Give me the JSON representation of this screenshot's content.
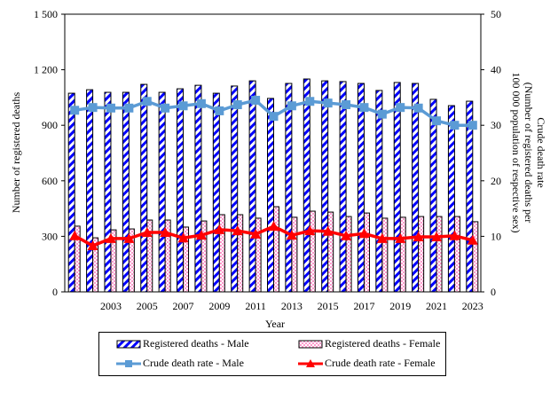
{
  "chart_data": {
    "type": "bar",
    "title": "",
    "xlabel": "Year",
    "ylabel": "Number of registered deaths",
    "y2label_lines": [
      "Crude death rate",
      "(Number of registered deaths per",
      "100 000 population of respective sex)"
    ],
    "ylim": [
      0,
      1500
    ],
    "y2lim": [
      0,
      50
    ],
    "yticks": [
      "0",
      "300",
      "600",
      "900",
      "1 200",
      "1 500"
    ],
    "yticks_values": [
      0,
      300,
      600,
      900,
      1200,
      1500
    ],
    "y2ticks": [
      "0",
      "10",
      "20",
      "30",
      "40",
      "50"
    ],
    "y2ticks_values": [
      0,
      10,
      20,
      30,
      40,
      50
    ],
    "grid": false,
    "legend_position": "bottom",
    "categories": [
      "2001",
      "2002",
      "2003",
      "2004",
      "2005",
      "2006",
      "2007",
      "2008",
      "2009",
      "2010",
      "2011",
      "2012",
      "2013",
      "2014",
      "2015",
      "2016",
      "2017",
      "2018",
      "2019",
      "2020",
      "2021",
      "2022",
      "2023"
    ],
    "xtick_labels": [
      "",
      "",
      "2003",
      "",
      "2005",
      "",
      "2007",
      "",
      "2009",
      "",
      "2011",
      "",
      "2013",
      "",
      "2015",
      "",
      "2017",
      "",
      "2019",
      "",
      "2021",
      "",
      "2023"
    ],
    "series": [
      {
        "name": "Registered deaths - Male",
        "kind": "bar",
        "axis": "left",
        "color": "#0000ff",
        "pattern": "diagonal-stripes",
        "values": [
          1073,
          1092,
          1078,
          1078,
          1121,
          1078,
          1097,
          1116,
          1073,
          1112,
          1140,
          1045,
          1126,
          1150,
          1140,
          1136,
          1126,
          1088,
          1131,
          1126,
          1040,
          1006,
          1030
        ]
      },
      {
        "name": "Registered deaths - Female",
        "kind": "bar",
        "axis": "left",
        "color": "#ff99cc",
        "pattern": "checker",
        "values": [
          355,
          292,
          335,
          340,
          388,
          388,
          350,
          383,
          417,
          417,
          398,
          460,
          403,
          436,
          431,
          407,
          426,
          398,
          403,
          407,
          407,
          407,
          379
        ]
      },
      {
        "name": "Crude death rate - Male",
        "kind": "line",
        "axis": "right",
        "color": "#5b9bd5",
        "marker": "square",
        "values": [
          32.7,
          33.2,
          33.1,
          33.1,
          34.3,
          33.1,
          33.5,
          33.9,
          32.6,
          33.7,
          34.5,
          31.6,
          33.5,
          34.3,
          34.0,
          33.7,
          33.2,
          32.0,
          33.2,
          33.1,
          30.8,
          30.0,
          30.0
        ]
      },
      {
        "name": "Crude death rate - Female",
        "kind": "line",
        "axis": "right",
        "color": "#ff0000",
        "marker": "triangle",
        "values": [
          10.1,
          8.3,
          9.6,
          9.6,
          10.7,
          10.7,
          9.7,
          10.2,
          11.2,
          11.0,
          10.4,
          11.8,
          10.2,
          11.0,
          10.9,
          10.1,
          10.5,
          9.6,
          9.6,
          9.9,
          9.9,
          10.1,
          9.3
        ]
      }
    ]
  },
  "legend": {
    "items": [
      {
        "label": "Registered deaths - Male"
      },
      {
        "label": "Registered deaths - Female"
      },
      {
        "label": "Crude death rate - Male"
      },
      {
        "label": "Crude death rate - Female"
      }
    ]
  }
}
